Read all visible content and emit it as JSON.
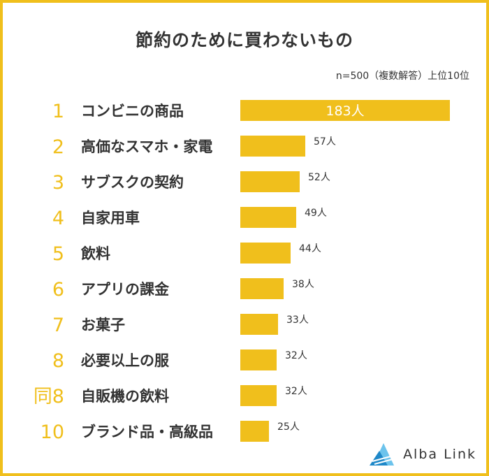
{
  "title": "節約のために買わないもの",
  "note": "n=500（複数解答）上位10位",
  "logo": {
    "text": "Alba Link",
    "icon": "alba-link-triangle-icon",
    "colors": [
      "#1e88c8",
      "#6cc3ec"
    ]
  },
  "colors": {
    "accent": "#f0bf1c",
    "text": "#333333",
    "frame": "#f0bf1c"
  },
  "chart_data": {
    "type": "bar",
    "orientation": "horizontal",
    "title": "節約のために買わないもの",
    "value_suffix": "人",
    "xlim": [
      0,
      183
    ],
    "ranks": [
      "1",
      "2",
      "3",
      "4",
      "5",
      "6",
      "7",
      "8",
      "同8",
      "10"
    ],
    "categories": [
      "コンビニの商品",
      "高価なスマホ・家電",
      "サブスクの契約",
      "自家用車",
      "飲料",
      "アプリの課金",
      "お菓子",
      "必要以上の服",
      "自販機の飲料",
      "ブランド品・高級品"
    ],
    "values": [
      183,
      57,
      52,
      49,
      44,
      38,
      33,
      32,
      32,
      25
    ],
    "value_labels": [
      "183人",
      "57人",
      "52人",
      "49人",
      "44人",
      "38人",
      "33人",
      "32人",
      "32人",
      "25人"
    ],
    "grid": false,
    "legend": "none"
  }
}
